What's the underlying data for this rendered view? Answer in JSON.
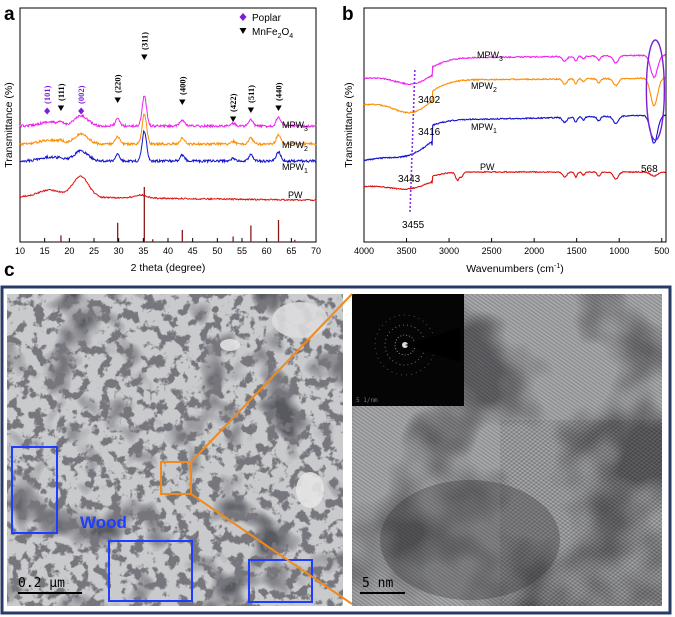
{
  "panel_labels": {
    "a": "a",
    "b": "b",
    "c": "c"
  },
  "colors": {
    "MPW3": "#ee22ee",
    "MPW2": "#ff8c00",
    "MPW1": "#1111cc",
    "PW": "#dd1111",
    "reference": "#8b1a1a",
    "poplar_marker": "#7a1ed6",
    "frame": "#2a3a66",
    "box_blue": "#1f3cff",
    "zoom_orange": "#f08a1c"
  },
  "chart_data": [
    {
      "type": "line",
      "panel": "a",
      "xlabel": "2 theta (degree)",
      "ylabel": "Transmittance (%)",
      "xlim": [
        10,
        70
      ],
      "xticks": [
        10,
        15,
        20,
        25,
        30,
        35,
        40,
        45,
        50,
        55,
        60,
        65,
        70
      ],
      "series": [
        {
          "name": "MPW3",
          "label_main": "MPW",
          "label_sub": "3",
          "key": "MPW3"
        },
        {
          "name": "MPW2",
          "label_main": "MPW",
          "label_sub": "2",
          "key": "MPW2"
        },
        {
          "name": "MPW1",
          "label_main": "MPW",
          "label_sub": "1",
          "key": "MPW1"
        },
        {
          "name": "PW",
          "label_main": "PW",
          "label_sub": "",
          "key": "PW"
        }
      ],
      "legend": {
        "placement": "top-right",
        "entries": [
          {
            "marker": "diamond",
            "text": "Poplar",
            "sub": "",
            "tail": ""
          },
          {
            "marker": "triangle-down",
            "text": "MnFe",
            "sub": "2",
            "mid": "O",
            "sub2": "4"
          }
        ]
      },
      "peaks": [
        {
          "label": "(101)",
          "x": 15.5,
          "marker": "diamond",
          "color": "#7a1ed6"
        },
        {
          "label": "(111)",
          "x": 18.3,
          "marker": "triangle-down",
          "color": "#000000"
        },
        {
          "label": "(002)",
          "x": 22.4,
          "marker": "diamond",
          "color": "#7a1ed6"
        },
        {
          "label": "(220)",
          "x": 29.8,
          "marker": "triangle-down",
          "color": "#000000"
        },
        {
          "label": "(311)",
          "x": 35.2,
          "marker": "triangle-down",
          "color": "#000000"
        },
        {
          "label": "(400)",
          "x": 42.9,
          "marker": "triangle-down",
          "color": "#000000"
        },
        {
          "label": "(422)",
          "x": 53.2,
          "marker": "triangle-down",
          "color": "#000000"
        },
        {
          "label": "(511)",
          "x": 56.8,
          "marker": "triangle-down",
          "color": "#000000"
        },
        {
          "label": "(440)",
          "x": 62.4,
          "marker": "triangle-down",
          "color": "#000000"
        }
      ],
      "reference_lines": [
        {
          "x": 18.3,
          "h": 0.12
        },
        {
          "x": 29.8,
          "h": 0.35
        },
        {
          "x": 35.2,
          "h": 1.0
        },
        {
          "x": 36.9,
          "h": 0.05
        },
        {
          "x": 42.9,
          "h": 0.22
        },
        {
          "x": 53.2,
          "h": 0.1
        },
        {
          "x": 56.8,
          "h": 0.3
        },
        {
          "x": 62.4,
          "h": 0.4
        },
        {
          "x": 65.7,
          "h": 0.04
        }
      ]
    },
    {
      "type": "line",
      "panel": "b",
      "xlabel_main": "Wavenumbers (cm",
      "xlabel_sup": "-1",
      "xlabel_tail": ")",
      "ylabel": "Transmittance (%)",
      "xlim": [
        4000,
        450
      ],
      "x_reversed": true,
      "xticks": [
        4000,
        3500,
        3000,
        2500,
        2000,
        1500,
        1000,
        500
      ],
      "series": [
        {
          "name": "MPW3",
          "label_main": "MPW",
          "label_sub": "3",
          "key": "MPW3"
        },
        {
          "name": "MPW2",
          "label_main": "MPW",
          "label_sub": "2",
          "key": "MPW2"
        },
        {
          "name": "MPW1",
          "label_main": "MPW",
          "label_sub": "1",
          "key": "MPW1"
        },
        {
          "name": "PW",
          "label_main": "PW",
          "label_sub": "",
          "key": "PW"
        }
      ],
      "annotations": [
        {
          "text": "3402",
          "x": 3402,
          "series": "MPW3"
        },
        {
          "text": "3416",
          "x": 3416,
          "series": "MPW2"
        },
        {
          "text": "3443",
          "x": 3443,
          "series": "MPW1"
        },
        {
          "text": "3455",
          "x": 3455,
          "series": "PW"
        },
        {
          "text": "568",
          "x": 568,
          "series": "ellipse"
        }
      ]
    }
  ],
  "micrographs": {
    "wood_label": "Wood",
    "scale_left": "0.2 μm",
    "scale_right": "5 nm",
    "saed_scale": "5 1/nm"
  }
}
